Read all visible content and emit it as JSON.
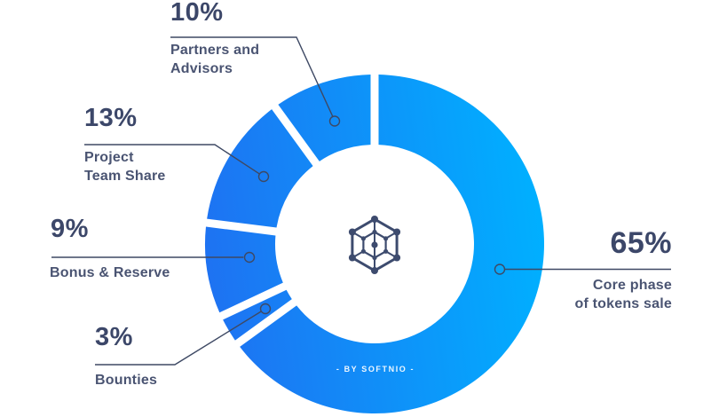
{
  "branding": {
    "byline": "- BY SOFTNIO -",
    "logo": "hexagon-network-logo"
  },
  "colors": {
    "background": "#ffffff",
    "segment_gradient_start": "#1e72f2",
    "segment_gradient_end": "#00b0ff",
    "percent_text": "#3c4769",
    "label_text": "#4a5472",
    "callout_line": "#3e4964",
    "byline_text": "#ffffff",
    "logo": "#3d4b6e"
  },
  "chart_data": {
    "type": "pie",
    "variant": "donut",
    "title": "",
    "legend_position": "callout-labels",
    "grid": false,
    "categories": [
      "Core phase of tokens sale",
      "Bounties",
      "Bonus & Reserve",
      "Project Team Share",
      "Partners and Advisors"
    ],
    "values": [
      65,
      3,
      9,
      13,
      10
    ],
    "start_angle_deg": 0,
    "direction": "clockwise",
    "segments": [
      {
        "name": "Core phase of tokens sale",
        "value": 65,
        "percent_label": "65%",
        "label_lines": [
          "Core phase",
          "of tokens sale"
        ]
      },
      {
        "name": "Bounties",
        "value": 3,
        "percent_label": "3%",
        "label_lines": [
          "Bounties"
        ]
      },
      {
        "name": "Bonus & Reserve",
        "value": 9,
        "percent_label": "9%",
        "label_lines": [
          "Bonus & Reserve"
        ]
      },
      {
        "name": "Project Team Share",
        "value": 13,
        "percent_label": "13%",
        "label_lines": [
          "Project",
          "Team Share"
        ]
      },
      {
        "name": "Partners and Advisors",
        "value": 10,
        "percent_label": "10%",
        "label_lines": [
          "Partners and",
          "Advisors"
        ]
      }
    ]
  }
}
